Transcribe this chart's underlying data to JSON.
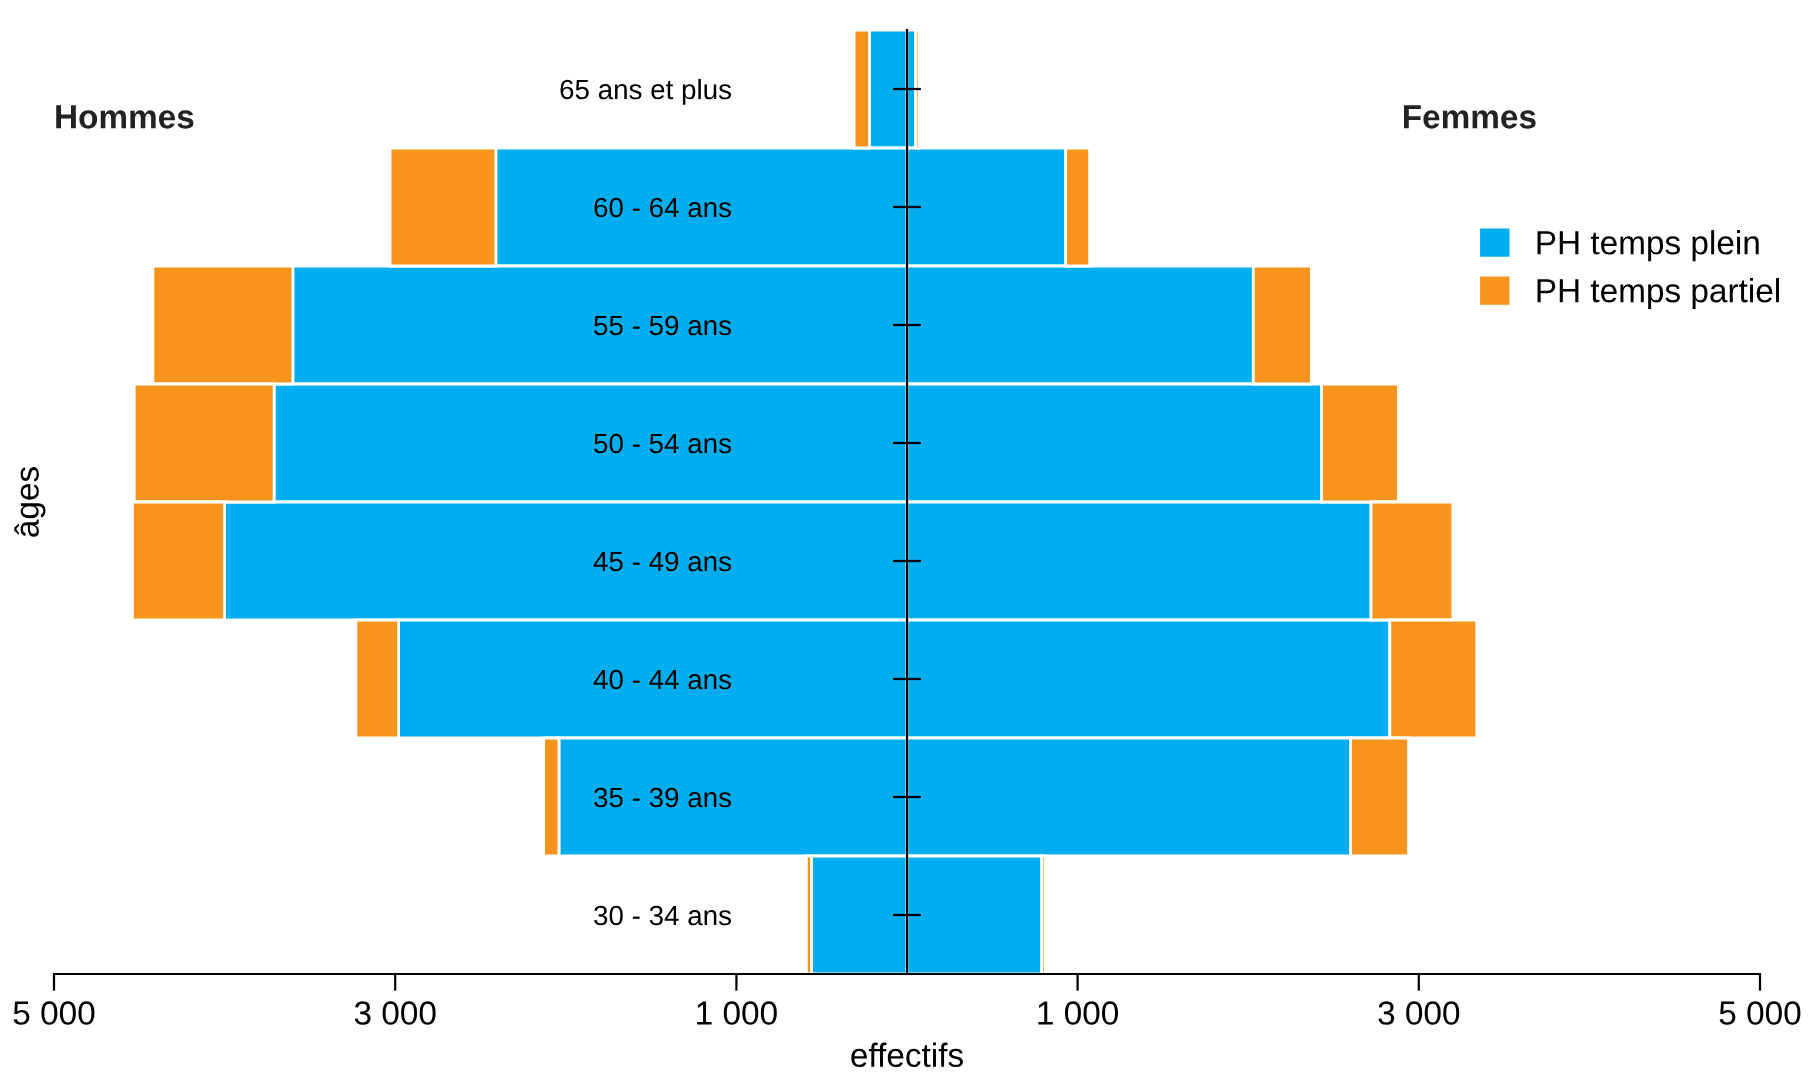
{
  "chart_data": {
    "type": "bar",
    "orientation": "horizontal",
    "stacked": true,
    "categories": [
      "65 ans et plus",
      "60 - 64 ans",
      "55 - 59 ans",
      "50 - 54 ans",
      "45 - 49 ans",
      "40 - 44 ans",
      "35 - 39 ans",
      "30 - 34 ans"
    ],
    "series": [
      {
        "color": "#00aeef",
        "values": [
          -220,
          -2410,
          -3600,
          -3710,
          -4000,
          -2980,
          -2040,
          -560
        ]
      },
      {
        "color": "#f7941d",
        "values": [
          -90,
          -620,
          -820,
          -820,
          -540,
          -250,
          -90,
          -30
        ]
      },
      {
        "name": "PH temps plein",
        "color": "#00aeef",
        "values": [
          50,
          930,
          2030,
          2430,
          2720,
          2830,
          2600,
          790
        ]
      },
      {
        "name": "PH temps partiel",
        "color": "#f7941d",
        "values": [
          20,
          140,
          340,
          450,
          480,
          510,
          340,
          20
        ]
      }
    ],
    "xlim": [
      -5000,
      5000
    ],
    "xticks": [
      {
        "value": -5000,
        "label": "5 000"
      },
      {
        "value": -3000,
        "label": "3 000"
      },
      {
        "value": -1000,
        "label": "1 000"
      },
      {
        "value": 1000,
        "label": "1 000"
      },
      {
        "value": 3000,
        "label": "3 000"
      },
      {
        "value": 5000,
        "label": "5 000"
      }
    ],
    "xlabel": "effectifs",
    "ylabel": "âges",
    "annotations": [
      "Hommes",
      "Femmes"
    ],
    "legend": "top right",
    "grid": false
  }
}
